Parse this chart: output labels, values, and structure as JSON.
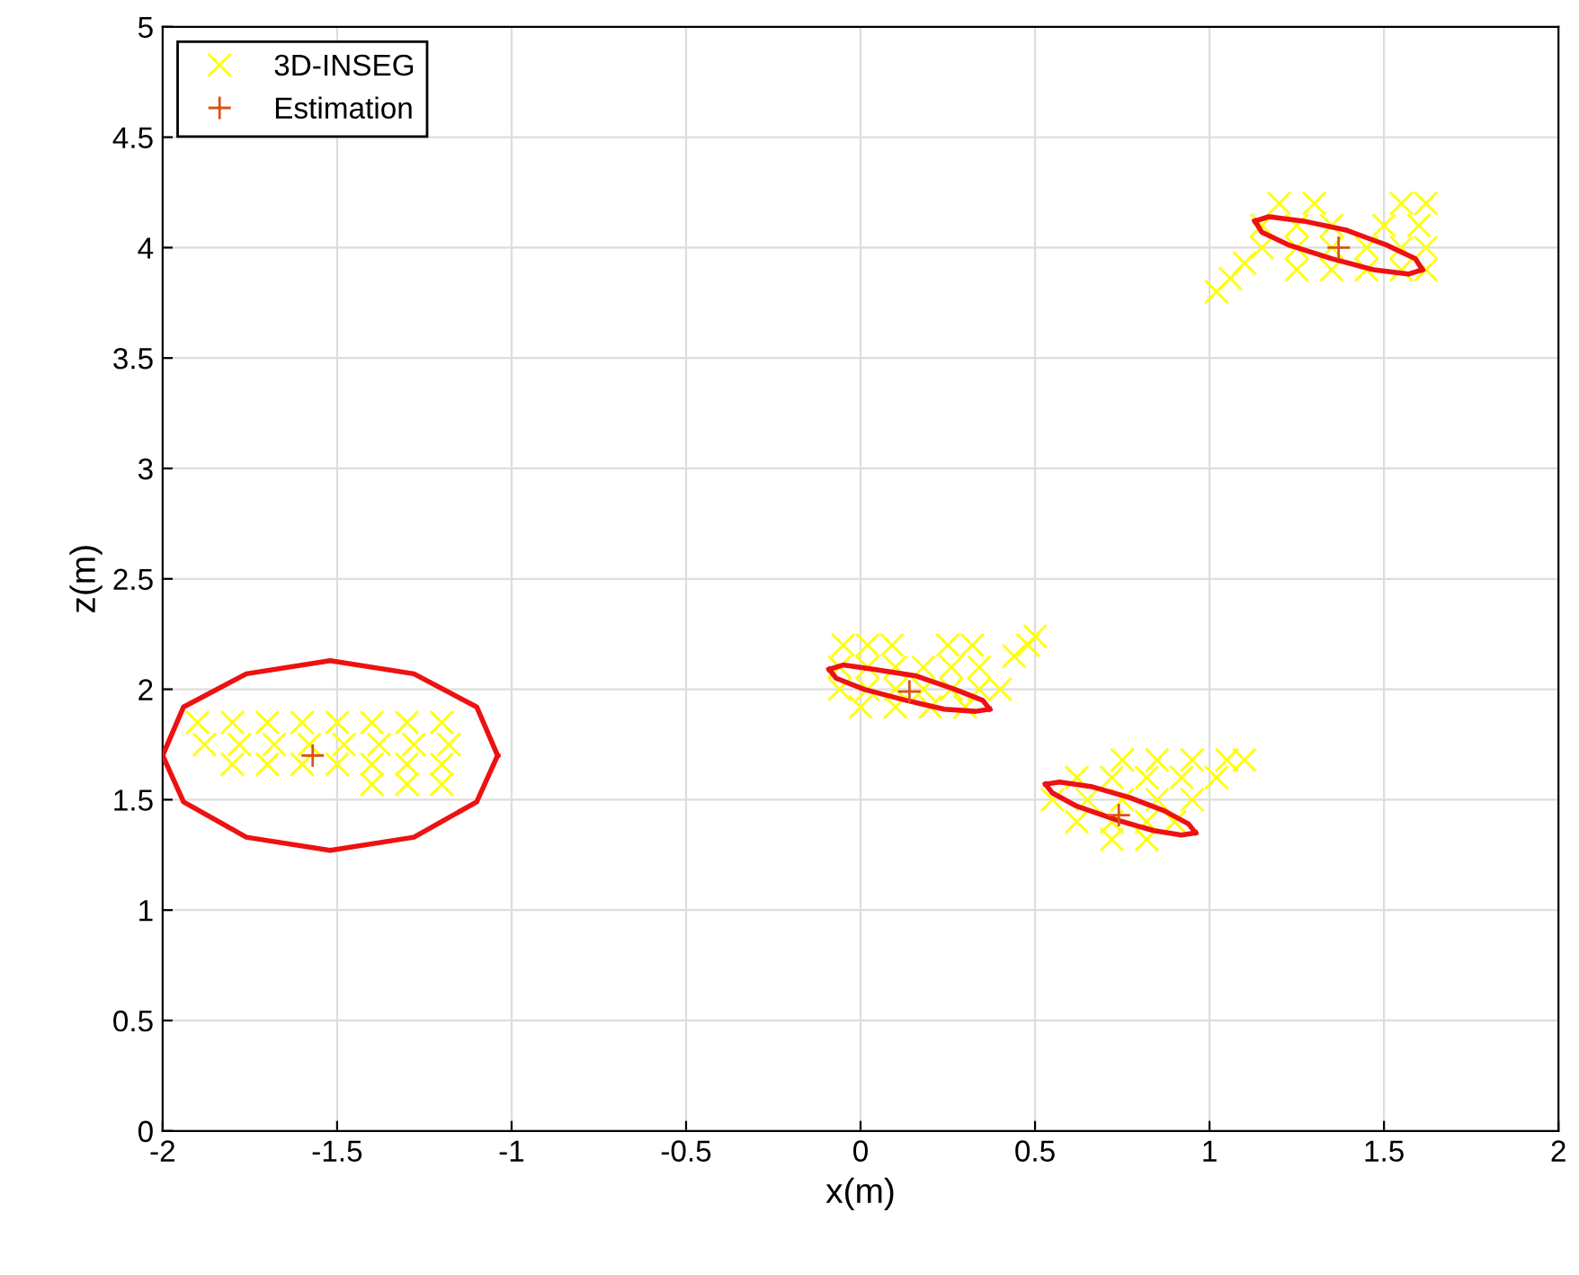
{
  "chart_data": {
    "type": "scatter",
    "xlabel": "x(m)",
    "ylabel": "z(m)",
    "xlim": [
      -2,
      2
    ],
    "ylim": [
      0,
      5
    ],
    "xticks": [
      -2,
      -1.5,
      -1,
      -0.5,
      0,
      0.5,
      1,
      1.5,
      2
    ],
    "yticks": [
      0,
      0.5,
      1,
      1.5,
      2,
      2.5,
      3,
      3.5,
      4,
      4.5,
      5
    ],
    "grid": true,
    "legend": "top left",
    "series": [
      {
        "name": "3D-INSEG",
        "marker": "cross",
        "color": "#ffff00",
        "x": [
          -1.9,
          -1.8,
          -1.7,
          -1.6,
          -1.5,
          -1.4,
          -1.3,
          -1.2,
          -1.88,
          -1.78,
          -1.68,
          -1.58,
          -1.48,
          -1.38,
          -1.28,
          -1.18,
          -1.8,
          -1.7,
          -1.6,
          -1.5,
          -1.4,
          -1.3,
          -1.2,
          -1.4,
          -1.3,
          -1.2,
          -0.05,
          0.02,
          0.09,
          0.25,
          0.32,
          -0.06,
          0.02,
          0.1,
          0.18,
          0.26,
          0.34,
          -0.06,
          0.02,
          0.1,
          0.18,
          0.26,
          0.34,
          0.4,
          0.0,
          0.1,
          0.2,
          0.3,
          0.44,
          0.48,
          0.5,
          0.75,
          0.85,
          0.95,
          1.05,
          1.1,
          0.62,
          0.72,
          0.82,
          0.92,
          1.02,
          0.55,
          0.65,
          0.75,
          0.85,
          0.95,
          0.62,
          0.72,
          0.82,
          0.9,
          0.72,
          0.82,
          1.2,
          1.3,
          1.55,
          1.62,
          1.15,
          1.25,
          1.35,
          1.5,
          1.6,
          1.15,
          1.25,
          1.35,
          1.45,
          1.55,
          1.62,
          1.25,
          1.35,
          1.45,
          1.55,
          1.62,
          1.02,
          1.06,
          1.1
        ],
        "values": [
          1.85,
          1.85,
          1.85,
          1.85,
          1.85,
          1.85,
          1.85,
          1.85,
          1.75,
          1.75,
          1.75,
          1.75,
          1.75,
          1.75,
          1.75,
          1.75,
          1.66,
          1.66,
          1.66,
          1.66,
          1.66,
          1.66,
          1.66,
          1.57,
          1.57,
          1.57,
          2.2,
          2.2,
          2.2,
          2.2,
          2.2,
          2.1,
          2.1,
          2.1,
          2.1,
          2.1,
          2.1,
          2.0,
          2.0,
          2.0,
          2.0,
          2.0,
          2.0,
          2.0,
          1.92,
          1.92,
          1.92,
          1.92,
          2.15,
          2.2,
          2.24,
          1.68,
          1.68,
          1.68,
          1.68,
          1.68,
          1.6,
          1.6,
          1.6,
          1.6,
          1.6,
          1.5,
          1.5,
          1.5,
          1.5,
          1.5,
          1.4,
          1.4,
          1.4,
          1.4,
          1.32,
          1.32,
          4.2,
          4.2,
          4.2,
          4.2,
          4.1,
          4.1,
          4.1,
          4.1,
          4.1,
          4.0,
          4.0,
          4.0,
          4.0,
          4.0,
          4.0,
          3.9,
          3.9,
          3.9,
          3.9,
          3.9,
          3.8,
          3.86,
          3.93
        ]
      },
      {
        "name": "Estimation",
        "marker": "plus",
        "color": "#d95319",
        "x": [
          -1.57,
          0.14,
          0.74,
          1.37
        ],
        "values": [
          1.7,
          1.99,
          1.43,
          4.0
        ]
      },
      {
        "type": "line",
        "marker": "none",
        "color": "#ee1111",
        "x": [
          -2.0,
          -1.94,
          -1.76,
          -1.52,
          -1.28,
          -1.1,
          -1.04
        ],
        "values": [
          1.7,
          1.92,
          2.07,
          2.13,
          2.07,
          1.92,
          1.7
        ]
      },
      {
        "type": "line",
        "marker": "none",
        "color": "#ee1111",
        "x": [
          -2.0,
          -1.94,
          -1.76,
          -1.52,
          -1.28,
          -1.1,
          -1.04
        ],
        "values": [
          1.7,
          1.49,
          1.33,
          1.27,
          1.33,
          1.49,
          1.7
        ]
      },
      {
        "type": "line",
        "marker": "none",
        "color": "#ee1111",
        "x": [
          -0.09,
          -0.05,
          0.04,
          0.16,
          0.27,
          0.35,
          0.37
        ],
        "values": [
          2.09,
          2.11,
          2.09,
          2.06,
          2.0,
          1.95,
          1.91
        ]
      },
      {
        "type": "line",
        "marker": "none",
        "color": "#ee1111",
        "x": [
          -0.09,
          -0.07,
          0.01,
          0.13,
          0.24,
          0.33,
          0.37
        ],
        "values": [
          2.09,
          2.05,
          2.0,
          1.95,
          1.91,
          1.9,
          1.91
        ]
      },
      {
        "type": "line",
        "marker": "none",
        "color": "#ee1111",
        "x": [
          0.53,
          0.57,
          0.66,
          0.77,
          0.87,
          0.94,
          0.96
        ],
        "values": [
          1.57,
          1.58,
          1.56,
          1.51,
          1.45,
          1.39,
          1.35
        ]
      },
      {
        "type": "line",
        "marker": "none",
        "color": "#ee1111",
        "x": [
          0.53,
          0.55,
          0.62,
          0.73,
          0.84,
          0.92,
          0.96
        ],
        "values": [
          1.57,
          1.53,
          1.47,
          1.41,
          1.36,
          1.34,
          1.35
        ]
      },
      {
        "type": "line",
        "marker": "none",
        "color": "#ee1111",
        "x": [
          1.13,
          1.17,
          1.27,
          1.39,
          1.51,
          1.59,
          1.61
        ],
        "values": [
          4.12,
          4.14,
          4.12,
          4.08,
          4.01,
          3.95,
          3.9
        ]
      },
      {
        "type": "line",
        "marker": "none",
        "color": "#ee1111",
        "x": [
          1.13,
          1.15,
          1.23,
          1.35,
          1.47,
          1.57,
          1.61
        ],
        "values": [
          4.12,
          4.07,
          4.01,
          3.95,
          3.9,
          3.88,
          3.9
        ]
      }
    ]
  }
}
